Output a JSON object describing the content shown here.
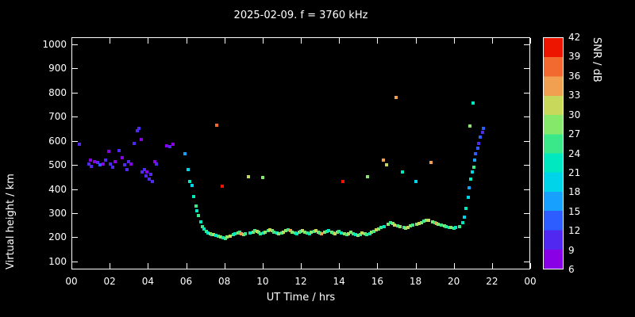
{
  "title": "2025-02-09. f = 3760 kHz",
  "axes": {
    "xlabel": "UT Time / hrs",
    "ylabel": "Virtual height / km"
  },
  "colors": {
    "background": "#000000",
    "frame": "#ffffff",
    "text": "#ffffff"
  },
  "colorbar": {
    "label": "SNR / dB",
    "min": 6,
    "max": 42,
    "tick_labels": [
      42,
      39,
      36,
      33,
      30,
      27,
      24,
      21,
      18,
      15,
      12,
      9,
      6
    ],
    "segments": [
      {
        "from": 6,
        "color": "#8a00e6"
      },
      {
        "from": 9,
        "color": "#5128f0"
      },
      {
        "from": 12,
        "color": "#2d5cff"
      },
      {
        "from": 15,
        "color": "#18a0ff"
      },
      {
        "from": 18,
        "color": "#00d4e8"
      },
      {
        "from": 21,
        "color": "#00e8c0"
      },
      {
        "from": 24,
        "color": "#3ae88a"
      },
      {
        "from": 27,
        "color": "#86e86a"
      },
      {
        "from": 30,
        "color": "#c8d85a"
      },
      {
        "from": 33,
        "color": "#f0a050"
      },
      {
        "from": 36,
        "color": "#f26a30"
      },
      {
        "from": 39,
        "color": "#ee1500"
      }
    ]
  },
  "chart_data": {
    "type": "scatter",
    "title": "2025-02-09. f = 3760 kHz",
    "xlabel": "UT Time / hrs",
    "ylabel": "Virtual height / km",
    "color_label": "SNR / dB",
    "xlim": [
      0,
      24
    ],
    "ylim": [
      67,
      1029
    ],
    "x_ticks": [
      {
        "v": 0,
        "label": "00"
      },
      {
        "v": 2,
        "label": "02"
      },
      {
        "v": 4,
        "label": "04"
      },
      {
        "v": 6,
        "label": "06"
      },
      {
        "v": 8,
        "label": "08"
      },
      {
        "v": 10,
        "label": "10"
      },
      {
        "v": 12,
        "label": "12"
      },
      {
        "v": 14,
        "label": "14"
      },
      {
        "v": 16,
        "label": "16"
      },
      {
        "v": 18,
        "label": "18"
      },
      {
        "v": 20,
        "label": "20"
      },
      {
        "v": 22,
        "label": "22"
      },
      {
        "v": 24,
        "label": "00"
      }
    ],
    "y_ticks": [
      100,
      200,
      300,
      400,
      500,
      600,
      700,
      800,
      900,
      1000
    ],
    "points_format": [
      "ut_hours",
      "virtual_height_km",
      "snr_db"
    ],
    "points": [
      [
        0.4,
        585,
        9
      ],
      [
        0.9,
        505,
        9
      ],
      [
        1.0,
        520,
        7
      ],
      [
        1.05,
        495,
        10
      ],
      [
        1.2,
        515,
        8
      ],
      [
        1.35,
        510,
        9
      ],
      [
        1.5,
        500,
        12
      ],
      [
        1.65,
        505,
        8
      ],
      [
        1.8,
        520,
        9
      ],
      [
        1.95,
        555,
        7
      ],
      [
        2.05,
        505,
        9
      ],
      [
        2.15,
        490,
        10
      ],
      [
        2.3,
        515,
        8
      ],
      [
        2.5,
        560,
        9
      ],
      [
        2.65,
        530,
        7
      ],
      [
        2.8,
        500,
        9
      ],
      [
        2.9,
        480,
        10
      ],
      [
        3.0,
        515,
        9
      ],
      [
        3.1,
        505,
        8
      ],
      [
        3.3,
        590,
        9
      ],
      [
        3.45,
        640,
        10
      ],
      [
        3.55,
        650,
        9
      ],
      [
        3.65,
        605,
        8
      ],
      [
        3.7,
        470,
        9
      ],
      [
        3.8,
        480,
        10
      ],
      [
        3.9,
        455,
        9
      ],
      [
        3.95,
        470,
        8
      ],
      [
        4.05,
        440,
        10
      ],
      [
        4.15,
        460,
        9
      ],
      [
        4.25,
        430,
        9
      ],
      [
        4.35,
        515,
        8
      ],
      [
        4.45,
        505,
        9
      ],
      [
        5.0,
        580,
        7
      ],
      [
        5.15,
        575,
        9
      ],
      [
        5.3,
        585,
        8
      ],
      [
        5.95,
        545,
        15
      ],
      [
        6.1,
        480,
        18
      ],
      [
        6.2,
        430,
        21
      ],
      [
        6.3,
        415,
        18
      ],
      [
        6.4,
        370,
        21
      ],
      [
        6.5,
        330,
        24
      ],
      [
        6.55,
        310,
        21
      ],
      [
        6.65,
        290,
        24
      ],
      [
        6.75,
        265,
        21
      ],
      [
        6.85,
        245,
        24
      ],
      [
        6.95,
        235,
        21
      ],
      [
        7.05,
        225,
        24
      ],
      [
        7.15,
        218,
        21
      ],
      [
        7.25,
        215,
        27
      ],
      [
        7.35,
        210,
        24
      ],
      [
        7.45,
        212,
        30
      ],
      [
        7.55,
        208,
        21
      ],
      [
        7.6,
        665,
        36
      ],
      [
        7.7,
        205,
        24
      ],
      [
        7.8,
        200,
        27
      ],
      [
        7.9,
        412,
        39
      ],
      [
        7.95,
        198,
        21
      ],
      [
        8.05,
        195,
        24
      ],
      [
        8.15,
        200,
        27
      ],
      [
        8.3,
        205,
        30
      ],
      [
        8.45,
        210,
        24
      ],
      [
        8.55,
        215,
        21
      ],
      [
        8.7,
        218,
        27
      ],
      [
        8.8,
        222,
        24
      ],
      [
        8.9,
        215,
        33
      ],
      [
        9.0,
        210,
        27
      ],
      [
        9.1,
        215,
        24
      ],
      [
        9.25,
        450,
        30
      ],
      [
        9.35,
        218,
        21
      ],
      [
        9.5,
        222,
        27
      ],
      [
        9.6,
        228,
        24
      ],
      [
        9.7,
        225,
        30
      ],
      [
        9.8,
        220,
        27
      ],
      [
        9.9,
        215,
        24
      ],
      [
        10.0,
        448,
        27
      ],
      [
        10.05,
        218,
        21
      ],
      [
        10.15,
        222,
        27
      ],
      [
        10.3,
        228,
        24
      ],
      [
        10.4,
        232,
        30
      ],
      [
        10.5,
        228,
        27
      ],
      [
        10.6,
        222,
        24
      ],
      [
        10.75,
        218,
        21
      ],
      [
        10.85,
        215,
        27
      ],
      [
        11.0,
        218,
        24
      ],
      [
        11.1,
        222,
        30
      ],
      [
        11.2,
        228,
        27
      ],
      [
        11.35,
        232,
        24
      ],
      [
        11.45,
        228,
        33
      ],
      [
        11.55,
        222,
        27
      ],
      [
        11.7,
        218,
        24
      ],
      [
        11.8,
        215,
        21
      ],
      [
        11.9,
        220,
        27
      ],
      [
        12.0,
        225,
        24
      ],
      [
        12.1,
        228,
        30
      ],
      [
        12.2,
        222,
        27
      ],
      [
        12.35,
        218,
        24
      ],
      [
        12.45,
        215,
        21
      ],
      [
        12.55,
        220,
        27
      ],
      [
        12.7,
        225,
        24
      ],
      [
        12.8,
        228,
        30
      ],
      [
        12.9,
        222,
        27
      ],
      [
        13.0,
        218,
        24
      ],
      [
        13.1,
        215,
        33
      ],
      [
        13.25,
        220,
        27
      ],
      [
        13.35,
        225,
        24
      ],
      [
        13.45,
        228,
        21
      ],
      [
        13.6,
        222,
        27
      ],
      [
        13.7,
        218,
        24
      ],
      [
        13.8,
        215,
        30
      ],
      [
        13.9,
        220,
        27
      ],
      [
        14.0,
        225,
        24
      ],
      [
        14.1,
        218,
        21
      ],
      [
        14.2,
        430,
        39
      ],
      [
        14.3,
        215,
        27
      ],
      [
        14.4,
        210,
        24
      ],
      [
        14.5,
        215,
        30
      ],
      [
        14.6,
        220,
        27
      ],
      [
        14.75,
        215,
        24
      ],
      [
        14.85,
        210,
        21
      ],
      [
        15.0,
        208,
        27
      ],
      [
        15.1,
        212,
        24
      ],
      [
        15.2,
        218,
        30
      ],
      [
        15.35,
        215,
        27
      ],
      [
        15.45,
        210,
        24
      ],
      [
        15.5,
        450,
        27
      ],
      [
        15.6,
        215,
        21
      ],
      [
        15.7,
        220,
        27
      ],
      [
        15.8,
        225,
        24
      ],
      [
        15.95,
        230,
        30
      ],
      [
        16.05,
        235,
        27
      ],
      [
        16.2,
        240,
        24
      ],
      [
        16.3,
        520,
        33
      ],
      [
        16.35,
        245,
        21
      ],
      [
        16.5,
        500,
        30
      ],
      [
        16.55,
        255,
        27
      ],
      [
        16.7,
        260,
        24
      ],
      [
        16.8,
        258,
        27
      ],
      [
        16.9,
        252,
        30
      ],
      [
        17.0,
        780,
        33
      ],
      [
        17.05,
        248,
        24
      ],
      [
        17.2,
        245,
        27
      ],
      [
        17.3,
        470,
        21
      ],
      [
        17.4,
        240,
        24
      ],
      [
        17.5,
        238,
        27
      ],
      [
        17.6,
        242,
        30
      ],
      [
        17.75,
        248,
        27
      ],
      [
        17.85,
        252,
        24
      ],
      [
        18.0,
        430,
        18
      ],
      [
        18.05,
        255,
        27
      ],
      [
        18.2,
        258,
        30
      ],
      [
        18.3,
        262,
        27
      ],
      [
        18.45,
        268,
        24
      ],
      [
        18.55,
        272,
        27
      ],
      [
        18.7,
        270,
        30
      ],
      [
        18.8,
        510,
        33
      ],
      [
        18.9,
        265,
        27
      ],
      [
        19.0,
        262,
        24
      ],
      [
        19.1,
        258,
        33
      ],
      [
        19.2,
        255,
        27
      ],
      [
        19.35,
        252,
        24
      ],
      [
        19.5,
        248,
        27
      ],
      [
        19.6,
        245,
        24
      ],
      [
        19.75,
        242,
        21
      ],
      [
        19.85,
        240,
        27
      ],
      [
        20.0,
        238,
        24
      ],
      [
        20.1,
        242,
        21
      ],
      [
        20.3,
        245,
        24
      ],
      [
        20.45,
        260,
        21
      ],
      [
        20.55,
        285,
        18
      ],
      [
        20.65,
        320,
        21
      ],
      [
        20.75,
        365,
        18
      ],
      [
        20.8,
        405,
        15
      ],
      [
        20.85,
        662,
        27
      ],
      [
        20.9,
        440,
        21
      ],
      [
        20.95,
        470,
        18
      ],
      [
        21.0,
        755,
        21
      ],
      [
        21.05,
        490,
        24
      ],
      [
        21.1,
        520,
        15
      ],
      [
        21.15,
        545,
        12
      ],
      [
        21.25,
        570,
        12
      ],
      [
        21.3,
        590,
        9
      ],
      [
        21.4,
        615,
        12
      ],
      [
        21.5,
        635,
        9
      ],
      [
        21.55,
        650,
        12
      ]
    ]
  }
}
